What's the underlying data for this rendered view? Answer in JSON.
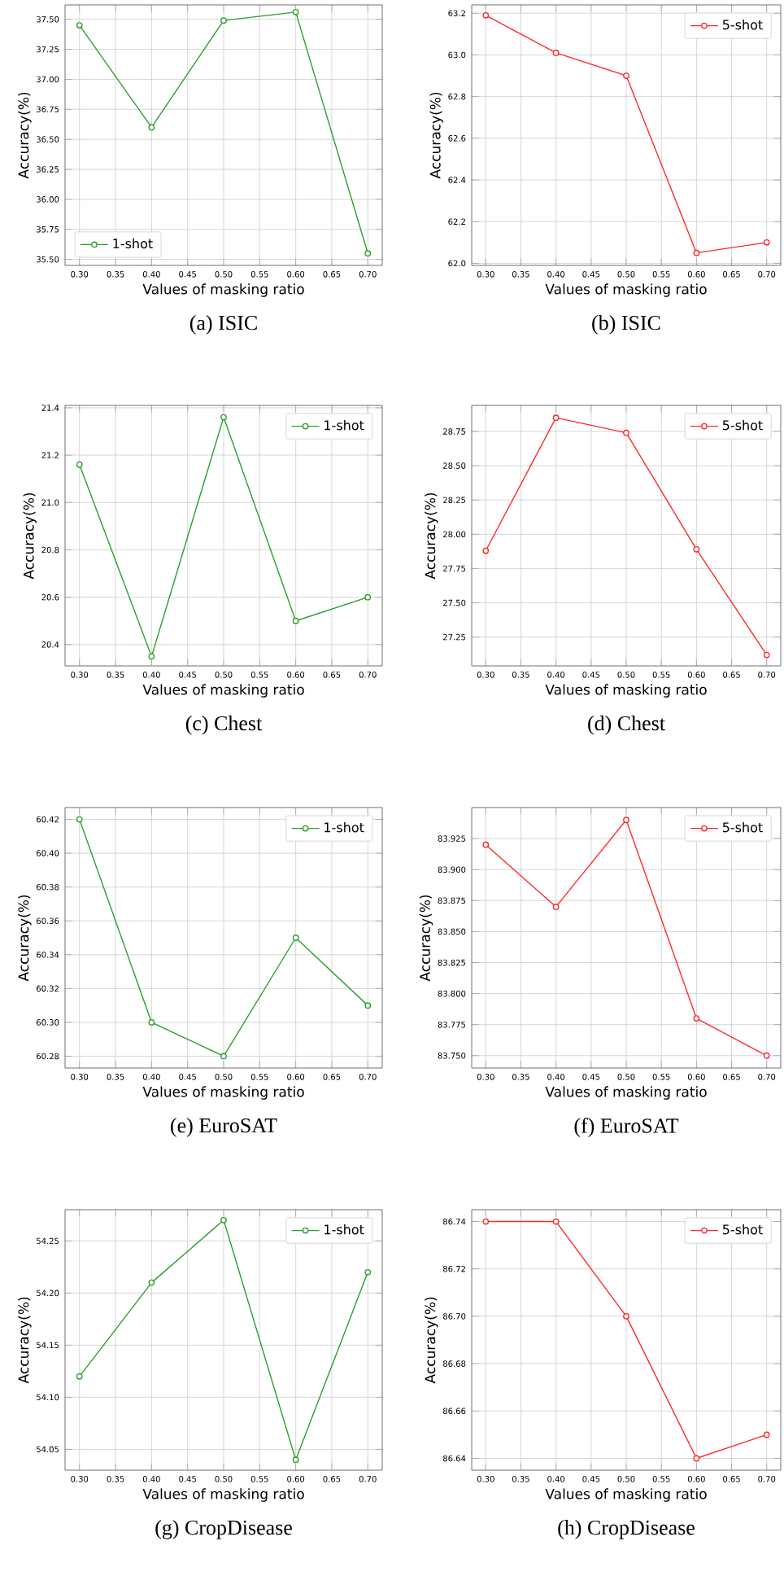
{
  "chart_data": [
    {
      "type": "line",
      "title": "(a) ISIC",
      "xlabel": "Values of masking ratio",
      "ylabel": "Accuracy(%)",
      "x": [
        0.3,
        0.4,
        0.5,
        0.6,
        0.7
      ],
      "series": [
        {
          "name": "1-shot",
          "color": "#2ca02c",
          "values": [
            37.45,
            36.6,
            37.49,
            37.56,
            35.55
          ]
        }
      ],
      "xlim": [
        0.28,
        0.72
      ],
      "xticks": [
        {
          "value": 0.3,
          "label": "0.30"
        },
        {
          "value": 0.35,
          "label": "0.35"
        },
        {
          "value": 0.4,
          "label": "0.40"
        },
        {
          "value": 0.45,
          "label": "0.45"
        },
        {
          "value": 0.5,
          "label": "0.50"
        },
        {
          "value": 0.55,
          "label": "0.55"
        },
        {
          "value": 0.6,
          "label": "0.60"
        },
        {
          "value": 0.65,
          "label": "0.65"
        },
        {
          "value": 0.7,
          "label": "0.70"
        }
      ],
      "ylim": [
        35.45,
        37.62
      ],
      "yticks": [
        {
          "value": 35.5,
          "label": "35.50"
        },
        35.75,
        {
          "value": 36.0,
          "label": "36.00"
        },
        36.25,
        {
          "value": 36.5,
          "label": "36.50"
        },
        36.75,
        {
          "value": 37.0,
          "label": "37.00"
        },
        37.25,
        {
          "value": 37.5,
          "label": "37.50"
        }
      ],
      "grid": true,
      "legend": "bottom left",
      "marker": "circle",
      "line_style": "solid"
    },
    {
      "type": "line",
      "title": "(b) ISIC",
      "xlabel": "Values of masking ratio",
      "ylabel": "Accuracy(%)",
      "x": [
        0.3,
        0.4,
        0.5,
        0.6,
        0.7
      ],
      "series": [
        {
          "name": "5-shot",
          "color": "#ff2a2a",
          "values": [
            63.19,
            63.01,
            62.9,
            62.05,
            62.1
          ]
        }
      ],
      "xlim": [
        0.28,
        0.72
      ],
      "xticks": [
        {
          "value": 0.3,
          "label": "0.30"
        },
        {
          "value": 0.35,
          "label": "0.35"
        },
        {
          "value": 0.4,
          "label": "0.40"
        },
        {
          "value": 0.45,
          "label": "0.45"
        },
        {
          "value": 0.5,
          "label": "0.50"
        },
        {
          "value": 0.55,
          "label": "0.55"
        },
        {
          "value": 0.6,
          "label": "0.60"
        },
        {
          "value": 0.65,
          "label": "0.65"
        },
        {
          "value": 0.7,
          "label": "0.70"
        }
      ],
      "ylim": [
        61.99,
        63.24
      ],
      "yticks": [
        {
          "value": 62.0,
          "label": "62.0"
        },
        62.2,
        62.4,
        62.6,
        62.8,
        {
          "value": 63.0,
          "label": "63.0"
        },
        63.2
      ],
      "grid": true,
      "legend": "top right",
      "marker": "circle",
      "line_style": "solid"
    },
    {
      "type": "line",
      "title": "(c) Chest",
      "xlabel": "Values of masking ratio",
      "ylabel": "Accuracy(%)",
      "x": [
        0.3,
        0.4,
        0.5,
        0.6,
        0.7
      ],
      "series": [
        {
          "name": "1-shot",
          "color": "#2ca02c",
          "values": [
            21.16,
            20.35,
            21.36,
            20.5,
            20.6
          ]
        }
      ],
      "xlim": [
        0.28,
        0.72
      ],
      "xticks": [
        {
          "value": 0.3,
          "label": "0.30"
        },
        {
          "value": 0.35,
          "label": "0.35"
        },
        {
          "value": 0.4,
          "label": "0.40"
        },
        {
          "value": 0.45,
          "label": "0.45"
        },
        {
          "value": 0.5,
          "label": "0.50"
        },
        {
          "value": 0.55,
          "label": "0.55"
        },
        {
          "value": 0.6,
          "label": "0.60"
        },
        {
          "value": 0.65,
          "label": "0.65"
        },
        {
          "value": 0.7,
          "label": "0.70"
        }
      ],
      "ylim": [
        20.31,
        21.41
      ],
      "yticks": [
        20.4,
        20.6,
        20.8,
        {
          "value": 21.0,
          "label": "21.0"
        },
        21.2,
        21.4
      ],
      "grid": true,
      "legend": "top right",
      "marker": "circle",
      "line_style": "solid"
    },
    {
      "type": "line",
      "title": "(d) Chest",
      "xlabel": "Values of masking ratio",
      "ylabel": "Accuracy(%)",
      "x": [
        0.3,
        0.4,
        0.5,
        0.6,
        0.7
      ],
      "series": [
        {
          "name": "5-shot",
          "color": "#ff2a2a",
          "values": [
            27.88,
            28.85,
            28.74,
            27.89,
            27.12
          ]
        }
      ],
      "xlim": [
        0.28,
        0.72
      ],
      "xticks": [
        {
          "value": 0.3,
          "label": "0.30"
        },
        {
          "value": 0.35,
          "label": "0.35"
        },
        {
          "value": 0.4,
          "label": "0.40"
        },
        {
          "value": 0.45,
          "label": "0.45"
        },
        {
          "value": 0.5,
          "label": "0.50"
        },
        {
          "value": 0.55,
          "label": "0.55"
        },
        {
          "value": 0.6,
          "label": "0.60"
        },
        {
          "value": 0.65,
          "label": "0.65"
        },
        {
          "value": 0.7,
          "label": "0.70"
        }
      ],
      "ylim": [
        27.04,
        28.94
      ],
      "yticks": [
        27.25,
        {
          "value": 27.5,
          "label": "27.50"
        },
        27.75,
        {
          "value": 28.0,
          "label": "28.00"
        },
        28.25,
        {
          "value": 28.5,
          "label": "28.50"
        },
        28.75
      ],
      "grid": true,
      "legend": "top right",
      "marker": "circle",
      "line_style": "solid"
    },
    {
      "type": "line",
      "title": "(e) EuroSAT",
      "xlabel": "Values of masking ratio",
      "ylabel": "Accuracy(%)",
      "x": [
        0.3,
        0.4,
        0.5,
        0.6,
        0.7
      ],
      "series": [
        {
          "name": "1-shot",
          "color": "#2ca02c",
          "values": [
            60.42,
            60.3,
            60.28,
            60.35,
            60.31
          ]
        }
      ],
      "xlim": [
        0.28,
        0.72
      ],
      "xticks": [
        {
          "value": 0.3,
          "label": "0.30"
        },
        {
          "value": 0.35,
          "label": "0.35"
        },
        {
          "value": 0.4,
          "label": "0.40"
        },
        {
          "value": 0.45,
          "label": "0.45"
        },
        {
          "value": 0.5,
          "label": "0.50"
        },
        {
          "value": 0.55,
          "label": "0.55"
        },
        {
          "value": 0.6,
          "label": "0.60"
        },
        {
          "value": 0.65,
          "label": "0.65"
        },
        {
          "value": 0.7,
          "label": "0.70"
        }
      ],
      "ylim": [
        60.273,
        60.427
      ],
      "yticks": [
        60.28,
        {
          "value": 60.3,
          "label": "60.30"
        },
        60.32,
        60.34,
        60.36,
        60.38,
        {
          "value": 60.4,
          "label": "60.40"
        },
        60.42
      ],
      "grid": true,
      "legend": "top right",
      "marker": "circle",
      "line_style": "solid"
    },
    {
      "type": "line",
      "title": "(f) EuroSAT",
      "xlabel": "Values of masking ratio",
      "ylabel": "Accuracy(%)",
      "x": [
        0.3,
        0.4,
        0.5,
        0.6,
        0.7
      ],
      "series": [
        {
          "name": "5-shot",
          "color": "#ff2a2a",
          "values": [
            83.92,
            83.87,
            83.94,
            83.78,
            83.75
          ]
        }
      ],
      "xlim": [
        0.28,
        0.72
      ],
      "xticks": [
        {
          "value": 0.3,
          "label": "0.30"
        },
        {
          "value": 0.35,
          "label": "0.35"
        },
        {
          "value": 0.4,
          "label": "0.40"
        },
        {
          "value": 0.45,
          "label": "0.45"
        },
        {
          "value": 0.5,
          "label": "0.50"
        },
        {
          "value": 0.55,
          "label": "0.55"
        },
        {
          "value": 0.6,
          "label": "0.60"
        },
        {
          "value": 0.65,
          "label": "0.65"
        },
        {
          "value": 0.7,
          "label": "0.70"
        }
      ],
      "ylim": [
        83.74,
        83.95
      ],
      "yticks": [
        {
          "value": 83.75,
          "label": "83.750"
        },
        83.775,
        {
          "value": 83.8,
          "label": "83.800"
        },
        83.825,
        {
          "value": 83.85,
          "label": "83.850"
        },
        83.875,
        {
          "value": 83.9,
          "label": "83.900"
        },
        83.925
      ],
      "grid": true,
      "legend": "top right",
      "marker": "circle",
      "line_style": "solid"
    },
    {
      "type": "line",
      "title": "(g) CropDisease",
      "xlabel": "Values of masking ratio",
      "ylabel": "Accuracy(%)",
      "x": [
        0.3,
        0.4,
        0.5,
        0.6,
        0.7
      ],
      "series": [
        {
          "name": "1-shot",
          "color": "#2ca02c",
          "values": [
            54.12,
            54.21,
            54.27,
            54.04,
            54.22
          ]
        }
      ],
      "xlim": [
        0.28,
        0.72
      ],
      "xticks": [
        {
          "value": 0.3,
          "label": "0.30"
        },
        {
          "value": 0.35,
          "label": "0.35"
        },
        {
          "value": 0.4,
          "label": "0.40"
        },
        {
          "value": 0.45,
          "label": "0.45"
        },
        {
          "value": 0.5,
          "label": "0.50"
        },
        {
          "value": 0.55,
          "label": "0.55"
        },
        {
          "value": 0.6,
          "label": "0.60"
        },
        {
          "value": 0.65,
          "label": "0.65"
        },
        {
          "value": 0.7,
          "label": "0.70"
        }
      ],
      "ylim": [
        54.03,
        54.28
      ],
      "yticks": [
        54.05,
        {
          "value": 54.1,
          "label": "54.10"
        },
        54.15,
        {
          "value": 54.2,
          "label": "54.20"
        },
        54.25
      ],
      "grid": true,
      "legend": "top right",
      "marker": "circle",
      "line_style": "solid"
    },
    {
      "type": "line",
      "title": "(h) CropDisease",
      "xlabel": "Values of masking ratio",
      "ylabel": "Accuracy(%)",
      "x": [
        0.3,
        0.4,
        0.5,
        0.6,
        0.7
      ],
      "series": [
        {
          "name": "5-shot",
          "color": "#ff2a2a",
          "values": [
            86.74,
            86.74,
            86.7,
            86.64,
            86.65
          ]
        }
      ],
      "xlim": [
        0.28,
        0.72
      ],
      "xticks": [
        {
          "value": 0.3,
          "label": "0.30"
        },
        {
          "value": 0.35,
          "label": "0.35"
        },
        {
          "value": 0.4,
          "label": "0.40"
        },
        {
          "value": 0.45,
          "label": "0.45"
        },
        {
          "value": 0.5,
          "label": "0.50"
        },
        {
          "value": 0.55,
          "label": "0.55"
        },
        {
          "value": 0.6,
          "label": "0.60"
        },
        {
          "value": 0.65,
          "label": "0.65"
        },
        {
          "value": 0.7,
          "label": "0.70"
        }
      ],
      "ylim": [
        86.635,
        86.745
      ],
      "yticks": [
        86.64,
        86.66,
        86.68,
        {
          "value": 86.7,
          "label": "86.70"
        },
        86.72,
        86.74
      ],
      "grid": true,
      "legend": "top right",
      "marker": "circle",
      "line_style": "solid"
    }
  ]
}
